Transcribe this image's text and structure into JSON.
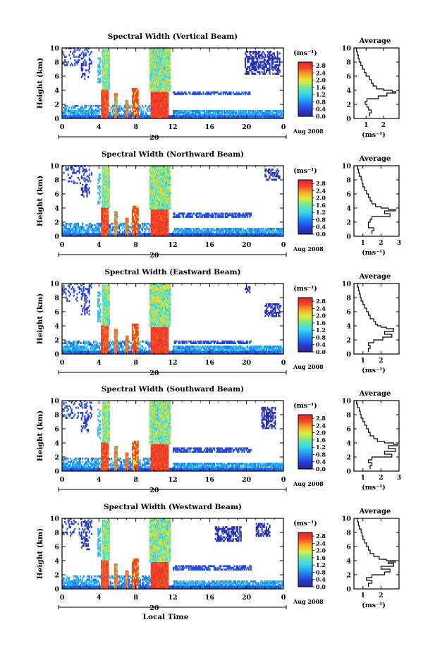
{
  "chart_data": [
    {
      "type": "heatmap",
      "title": "Spectral Width (Vertical Beam)",
      "ylabel": "Height (km)",
      "xlim": [
        0,
        24
      ],
      "ylim": [
        0,
        10
      ],
      "x_ticks": [
        "0",
        "4",
        "8",
        "12",
        "16",
        "20",
        "0"
      ],
      "y_ticks": [
        "0",
        "2",
        "4",
        "6",
        "8",
        "10"
      ],
      "date_label": "20",
      "month_label": "Aug 2008",
      "colorbar_label": "(ms⁻¹)",
      "colorbar_ticks": [
        "0.0",
        "0.4",
        "0.8",
        "1.2",
        "1.6",
        "2.0",
        "2.4",
        "2.8"
      ],
      "colorbar_range": [
        0,
        3
      ],
      "profile_title": "Average",
      "profile_xlabel": "(ms⁻¹)",
      "profile_xlim": [
        0.3,
        2.9
      ],
      "profile_x_ticks": [
        "1",
        "2"
      ],
      "profile_y_ticks": [
        "0",
        "2",
        "4",
        "6",
        "8",
        "10"
      ],
      "profile": {
        "height_km": [
          0.3,
          0.8,
          1.2,
          1.6,
          2.0,
          2.4,
          2.8,
          3.2,
          3.6,
          3.8,
          4.0,
          4.2,
          4.6,
          5.0,
          5.5,
          6.0,
          6.5,
          7.0,
          7.5,
          8.0,
          8.5,
          9.0,
          9.5,
          10.0
        ],
        "width_ms": [
          1.2,
          1.3,
          1.15,
          1.05,
          0.95,
          1.05,
          1.7,
          2.2,
          2.7,
          2.5,
          2.0,
          1.6,
          1.4,
          1.3,
          1.2,
          1.0,
          0.9,
          0.8,
          0.7,
          0.6,
          0.55,
          0.5,
          0.45,
          0.4
        ]
      }
    },
    {
      "type": "heatmap",
      "title": "Spectral Width (Northward Beam)",
      "ylabel": "Height (km)",
      "xlim": [
        0,
        24
      ],
      "ylim": [
        0,
        10
      ],
      "x_ticks": [
        "0",
        "4",
        "8",
        "12",
        "16",
        "20",
        "0"
      ],
      "y_ticks": [
        "0",
        "2",
        "4",
        "6",
        "8",
        "10"
      ],
      "date_label": "20",
      "month_label": "Aug 2008",
      "colorbar_label": "(ms⁻¹)",
      "colorbar_ticks": [
        "0.0",
        "0.4",
        "0.8",
        "1.2",
        "1.6",
        "2.0",
        "2.4",
        "2.8"
      ],
      "colorbar_range": [
        0,
        3
      ],
      "profile_title": "Average",
      "profile_xlabel": "(ms⁻¹)",
      "profile_xlim": [
        0.5,
        3.0
      ],
      "profile_x_ticks": [
        "1",
        "2",
        "3"
      ],
      "profile_y_ticks": [
        "0",
        "2",
        "4",
        "6",
        "8",
        "10"
      ],
      "profile": {
        "height_km": [
          0.3,
          0.8,
          1.2,
          1.6,
          2.0,
          2.4,
          2.8,
          3.2,
          3.6,
          3.8,
          4.0,
          4.2,
          4.6,
          5.0,
          5.5,
          6.0,
          6.5,
          7.0,
          7.5,
          8.0,
          8.5,
          9.0,
          9.5,
          10.0
        ],
        "width_ms": [
          1.5,
          1.6,
          1.3,
          1.3,
          1.4,
          1.5,
          2.5,
          2.2,
          2.8,
          2.4,
          2.0,
          1.7,
          1.5,
          1.4,
          1.3,
          1.2,
          1.1,
          1.0,
          0.95,
          0.9,
          0.8,
          0.75,
          0.7,
          0.65
        ]
      }
    },
    {
      "type": "heatmap",
      "title": "Spectral Width (Eastward Beam)",
      "ylabel": "Height (km)",
      "xlim": [
        0,
        24
      ],
      "ylim": [
        0,
        10
      ],
      "x_ticks": [
        "0",
        "4",
        "8",
        "12",
        "16",
        "20",
        "0"
      ],
      "y_ticks": [
        "0",
        "2",
        "4",
        "6",
        "8",
        "10"
      ],
      "date_label": "20",
      "month_label": "Aug 2008",
      "colorbar_label": "(ms⁻¹)",
      "colorbar_ticks": [
        "0.0",
        "0.4",
        "0.8",
        "1.2",
        "1.6",
        "2.0",
        "2.4",
        "2.8"
      ],
      "colorbar_range": [
        0,
        3
      ],
      "profile_title": "Average",
      "profile_xlabel": "(ms⁻¹)",
      "profile_xlim": [
        0.5,
        3.0
      ],
      "profile_x_ticks": [
        "1",
        "2"
      ],
      "profile_y_ticks": [
        "0",
        "2",
        "4",
        "6",
        "8",
        "10"
      ],
      "profile": {
        "height_km": [
          0.3,
          0.8,
          1.2,
          1.6,
          2.0,
          2.4,
          2.8,
          3.2,
          3.6,
          3.8,
          4.0,
          4.2,
          4.6,
          5.0,
          5.5,
          6.0,
          6.5,
          7.0,
          7.5,
          8.0,
          8.5,
          9.0,
          9.5,
          10.0
        ],
        "width_ms": [
          1.3,
          1.4,
          1.3,
          1.6,
          2.1,
          2.6,
          2.2,
          2.7,
          2.3,
          2.0,
          1.8,
          1.7,
          1.6,
          1.4,
          1.3,
          1.2,
          1.1,
          1.0,
          0.9,
          0.85,
          0.8,
          0.75,
          0.7,
          0.65
        ]
      }
    },
    {
      "type": "heatmap",
      "title": "Spectral Width (Southward Beam)",
      "ylabel": "Height (km)",
      "xlim": [
        0,
        24
      ],
      "ylim": [
        0,
        10
      ],
      "x_ticks": [
        "0",
        "4",
        "8",
        "12",
        "16",
        "20",
        "0"
      ],
      "y_ticks": [
        "0",
        "2",
        "4",
        "6",
        "8",
        "10"
      ],
      "date_label": "20",
      "month_label": "Aug 2008",
      "colorbar_label": "(ms⁻¹)",
      "colorbar_ticks": [
        "0.0",
        "0.4",
        "0.8",
        "1.2",
        "1.6",
        "2.0",
        "2.4",
        "2.8"
      ],
      "colorbar_range": [
        0,
        3
      ],
      "profile_title": "Average",
      "profile_xlabel": "(ms⁻¹)",
      "profile_xlim": [
        0.5,
        3.0
      ],
      "profile_x_ticks": [
        "1",
        "2",
        "3"
      ],
      "profile_y_ticks": [
        "0",
        "2",
        "4",
        "6",
        "8",
        "10"
      ],
      "profile": {
        "height_km": [
          0.3,
          0.8,
          1.2,
          1.6,
          2.0,
          2.4,
          2.8,
          3.2,
          3.6,
          3.8,
          4.0,
          4.2,
          4.6,
          5.0,
          5.5,
          6.0,
          6.5,
          7.0,
          7.5,
          8.0,
          8.5,
          9.0,
          9.5,
          10.0
        ],
        "width_ms": [
          1.4,
          1.5,
          1.3,
          1.5,
          2.6,
          2.2,
          2.8,
          2.4,
          2.9,
          2.7,
          2.2,
          1.8,
          1.6,
          1.4,
          1.3,
          1.2,
          1.1,
          1.0,
          0.9,
          0.85,
          0.8,
          0.7,
          0.65,
          0.6
        ]
      }
    },
    {
      "type": "heatmap",
      "title": "Spectral Width (Westward Beam)",
      "ylabel": "Height (km)",
      "xlabel": "Local Time",
      "xlim": [
        0,
        24
      ],
      "ylim": [
        0,
        10
      ],
      "x_ticks": [
        "0",
        "4",
        "8",
        "12",
        "16",
        "20",
        "0"
      ],
      "y_ticks": [
        "0",
        "2",
        "4",
        "6",
        "8",
        "10"
      ],
      "date_label": "20",
      "month_label": "Aug 2008",
      "colorbar_label": "(ms⁻¹)",
      "colorbar_ticks": [
        "0.0",
        "0.4",
        "0.8",
        "1.2",
        "1.6",
        "2.0",
        "2.4",
        "2.8"
      ],
      "colorbar_range": [
        0,
        3
      ],
      "profile_title": "Average",
      "profile_xlabel": "(ms⁻¹)",
      "profile_xlim": [
        0.5,
        3.0
      ],
      "profile_x_ticks": [
        "1",
        "2"
      ],
      "profile_y_ticks": [
        "0",
        "2",
        "4",
        "6",
        "8",
        "10"
      ],
      "profile": {
        "height_km": [
          0.3,
          0.8,
          1.2,
          1.6,
          2.0,
          2.4,
          2.8,
          3.2,
          3.6,
          3.8,
          4.0,
          4.2,
          4.6,
          5.0,
          5.5,
          6.0,
          6.5,
          7.0,
          7.5,
          8.0,
          8.5,
          9.0,
          9.5,
          10.0
        ],
        "width_ms": [
          1.3,
          1.5,
          1.2,
          1.5,
          2.2,
          2.5,
          2.0,
          2.7,
          2.4,
          2.8,
          2.3,
          1.9,
          1.6,
          1.4,
          1.3,
          1.2,
          1.1,
          1.0,
          0.95,
          0.9,
          0.8,
          0.75,
          0.7,
          0.65
        ]
      }
    }
  ]
}
